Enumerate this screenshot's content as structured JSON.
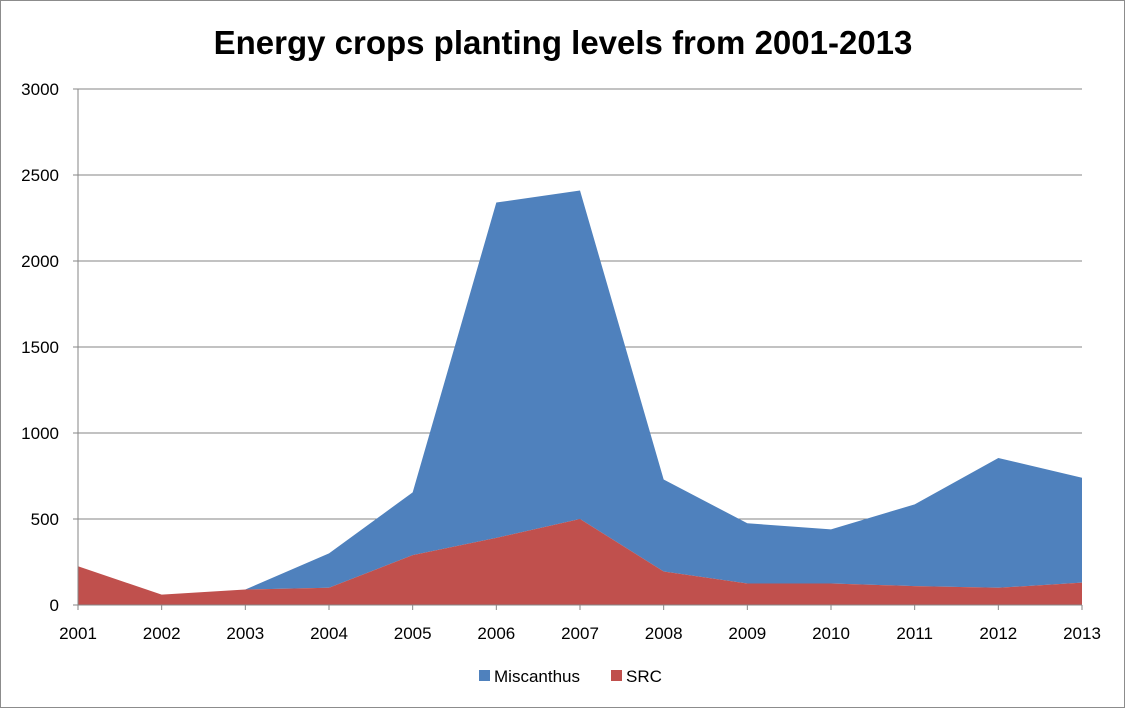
{
  "chart_data": {
    "type": "area",
    "stacked": true,
    "title": "Energy crops planting levels from 2001-2013",
    "xlabel": "",
    "ylabel": "",
    "categories": [
      "2001",
      "2002",
      "2003",
      "2004",
      "2005",
      "2006",
      "2007",
      "2008",
      "2009",
      "2010",
      "2011",
      "2012",
      "2013"
    ],
    "ylim": [
      0,
      3000
    ],
    "yticks": [
      "0",
      "500",
      "1000",
      "1500",
      "2000",
      "2500",
      "3000"
    ],
    "grid": "horizontal",
    "legend_position": "bottom",
    "series": [
      {
        "name": "Miscanthus",
        "color": "#4f81bd",
        "values": [
          0,
          0,
          0,
          200,
          365,
          1950,
          1910,
          535,
          350,
          315,
          475,
          755,
          610
        ]
      },
      {
        "name": "SRC",
        "color": "#c0504d",
        "values": [
          225,
          60,
          90,
          100,
          290,
          390,
          500,
          195,
          125,
          125,
          110,
          100,
          130
        ]
      }
    ]
  }
}
